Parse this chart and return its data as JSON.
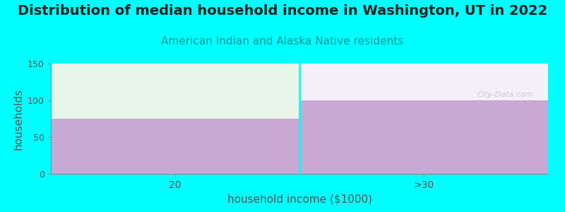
{
  "title": "Distribution of median household income in Washington, UT in 2022",
  "subtitle": "American Indian and Alaska Native residents",
  "xlabel": "household income ($1000)",
  "ylabel": "households",
  "background_color": "#00FFFF",
  "categories": [
    "20",
    ">30"
  ],
  "bar_values": [
    75,
    100
  ],
  "bar_color": "#C9A8D4",
  "top_fill_colors": [
    "#E8F5E9",
    "#F5F0F8"
  ],
  "ylim": [
    0,
    150
  ],
  "yticks": [
    0,
    50,
    100,
    150
  ],
  "title_fontsize": 14,
  "subtitle_fontsize": 11,
  "subtitle_color": "#009999",
  "axis_label_color": "#555555",
  "tick_color": "#555555",
  "watermark": "City-Data.com",
  "divider_color": "#00FFFF",
  "spine_color": "#888888"
}
